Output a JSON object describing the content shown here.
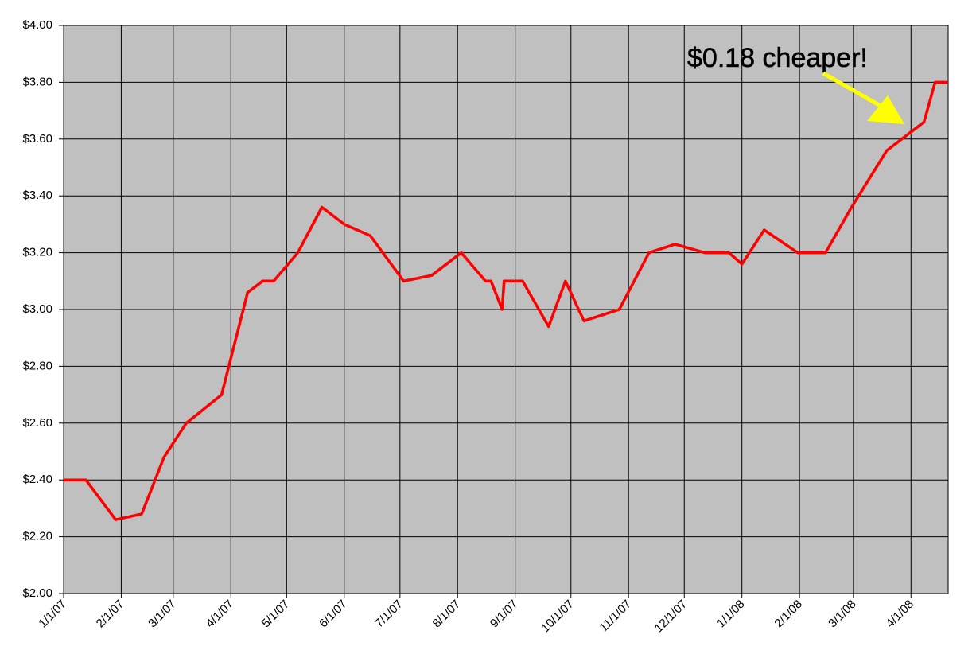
{
  "chart_data": {
    "type": "line",
    "x": [
      "2007-01-01",
      "2007-01-13",
      "2007-01-29",
      "2007-02-12",
      "2007-02-24",
      "2007-03-08",
      "2007-03-27",
      "2007-04-10",
      "2007-04-18",
      "2007-04-24",
      "2007-05-07",
      "2007-05-20",
      "2007-06-01",
      "2007-06-15",
      "2007-07-03",
      "2007-07-18",
      "2007-08-03",
      "2007-08-16",
      "2007-08-19",
      "2007-08-25",
      "2007-08-26",
      "2007-09-05",
      "2007-09-19",
      "2007-09-28",
      "2007-10-08",
      "2007-10-27",
      "2007-11-12",
      "2007-11-26",
      "2007-12-12",
      "2007-12-25",
      "2008-01-01",
      "2008-01-13",
      "2008-01-31",
      "2008-02-15",
      "2008-02-29",
      "2008-03-19",
      "2008-04-08",
      "2008-04-14",
      "2008-04-21"
    ],
    "values": [
      2.4,
      2.4,
      2.26,
      2.28,
      2.48,
      2.6,
      2.7,
      3.06,
      3.1,
      3.1,
      3.2,
      3.36,
      3.3,
      3.26,
      3.1,
      3.12,
      3.2,
      3.1,
      3.1,
      3.0,
      3.1,
      3.1,
      2.94,
      3.1,
      2.96,
      3.0,
      3.2,
      3.23,
      3.2,
      3.2,
      3.16,
      3.28,
      3.2,
      3.2,
      3.36,
      3.56,
      3.66,
      3.8,
      3.8
    ],
    "color": "#ff0000",
    "xlim": [
      "2007-01-01",
      "2008-04-21"
    ],
    "xticks": [
      {
        "value": "2007-01-01",
        "label": "1/1/07"
      },
      {
        "value": "2007-02-01",
        "label": "2/1/07"
      },
      {
        "value": "2007-03-01",
        "label": "3/1/07"
      },
      {
        "value": "2007-04-01",
        "label": "4/1/07"
      },
      {
        "value": "2007-05-01",
        "label": "5/1/07"
      },
      {
        "value": "2007-06-01",
        "label": "6/1/07"
      },
      {
        "value": "2007-07-01",
        "label": "7/1/07"
      },
      {
        "value": "2007-08-01",
        "label": "8/1/07"
      },
      {
        "value": "2007-09-01",
        "label": "9/1/07"
      },
      {
        "value": "2007-10-01",
        "label": "10/1/07"
      },
      {
        "value": "2007-11-01",
        "label": "11/1/07"
      },
      {
        "value": "2007-12-01",
        "label": "12/1/07"
      },
      {
        "value": "2008-01-01",
        "label": "1/1/08"
      },
      {
        "value": "2008-02-01",
        "label": "2/1/08"
      },
      {
        "value": "2008-03-01",
        "label": "3/1/08"
      },
      {
        "value": "2008-04-01",
        "label": "4/1/08"
      }
    ],
    "ylim": [
      2,
      4
    ],
    "yticks": [
      {
        "value": 2,
        "label": "$2.00"
      },
      {
        "value": 2.2,
        "label": "$2.20"
      },
      {
        "value": 2.4,
        "label": "$2.40"
      },
      {
        "value": 2.6,
        "label": "$2.60"
      },
      {
        "value": 2.8,
        "label": "$2.80"
      },
      {
        "value": 3,
        "label": "$3.00"
      },
      {
        "value": 3.2,
        "label": "$3.20"
      },
      {
        "value": 3.4,
        "label": "$3.40"
      },
      {
        "value": 3.6,
        "label": "$3.60"
      },
      {
        "value": 3.8,
        "label": "$3.80"
      },
      {
        "value": 4,
        "label": "$4.00"
      }
    ],
    "grid": true,
    "background": "#c0c0c0",
    "annotation": "$0.18 cheaper!"
  }
}
